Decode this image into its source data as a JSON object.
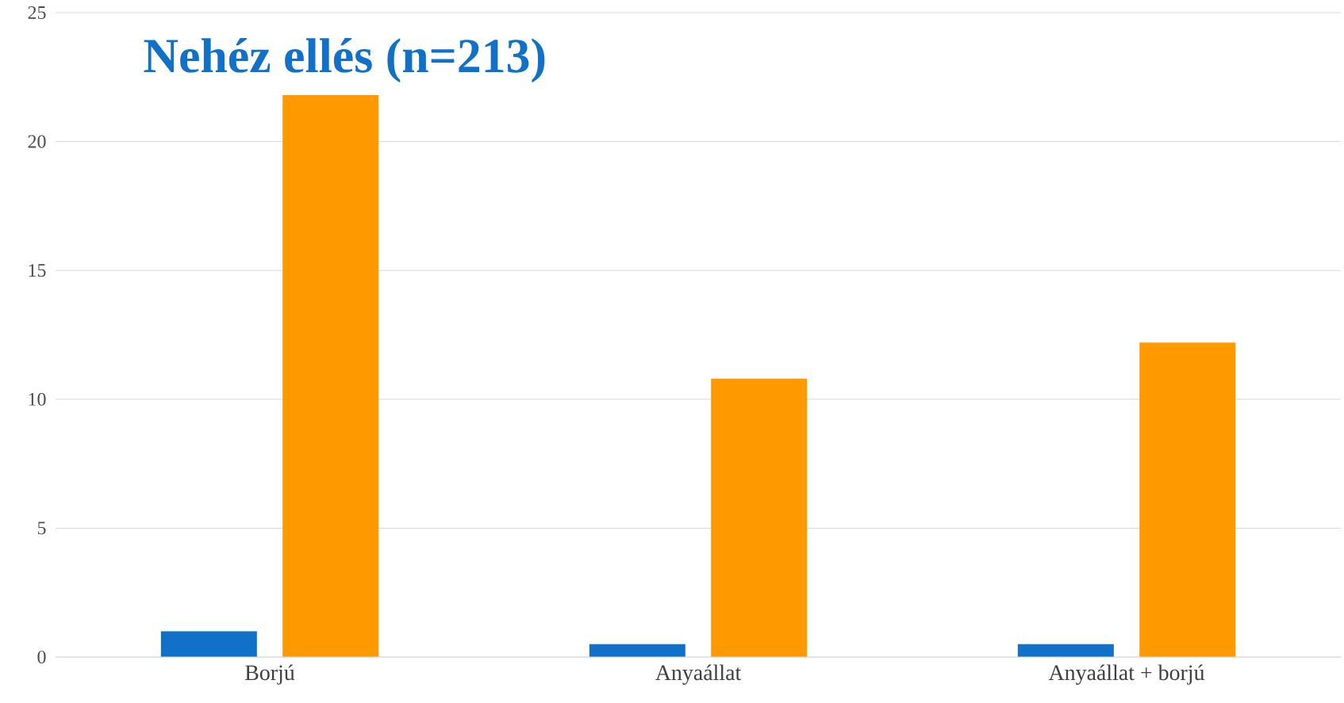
{
  "chart_data": {
    "type": "bar",
    "title": "Nehéz ellés (n=213)",
    "categories": [
      "Borjú",
      "Anyaállat",
      "Anyaállat + borjú"
    ],
    "series": [
      {
        "color": "#1170c8",
        "values": [
          1.0,
          0.5,
          0.5
        ]
      },
      {
        "color": "#ff9900",
        "values": [
          21.8,
          10.8,
          12.2
        ]
      }
    ],
    "ylim": [
      0,
      25
    ],
    "yticks": [
      0,
      5,
      10,
      15,
      20,
      25
    ],
    "grid": "y"
  }
}
